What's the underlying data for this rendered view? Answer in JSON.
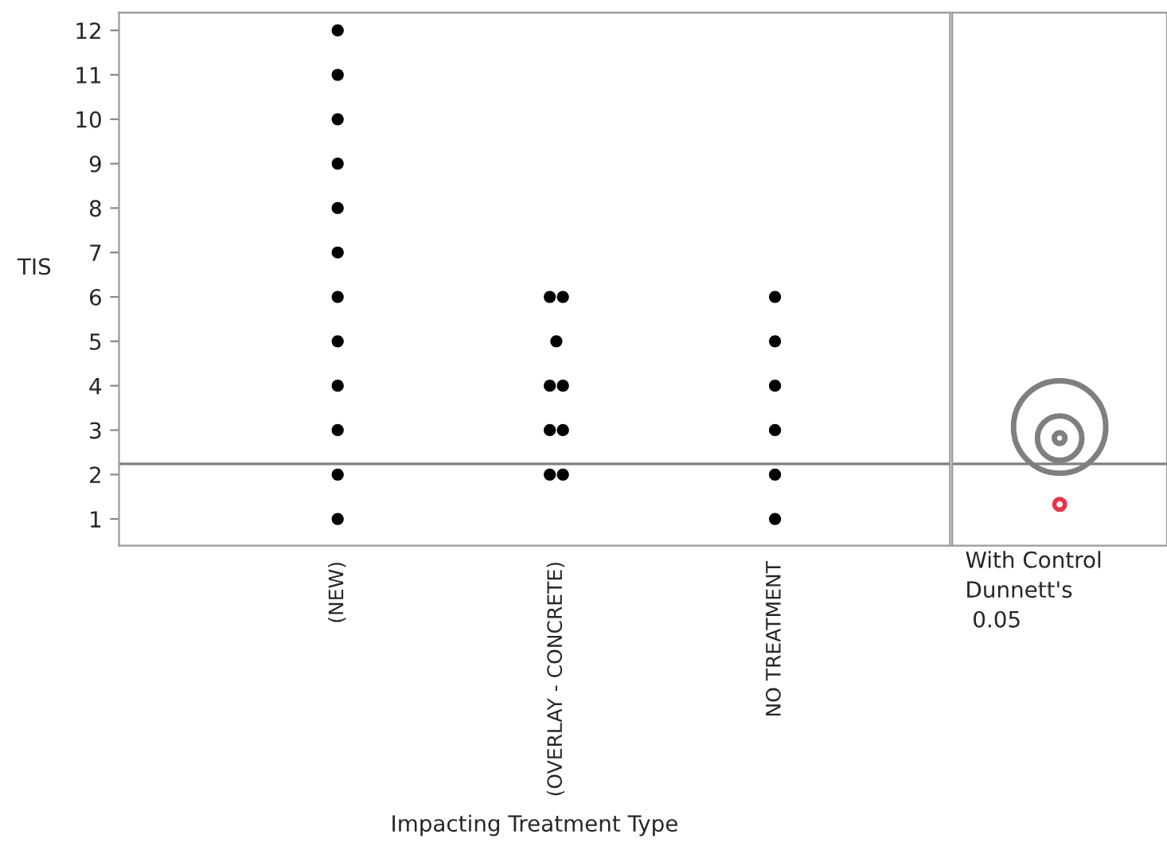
{
  "chart_data": {
    "type": "scatter",
    "categories": [
      "(NEW)",
      "(OVERLAY - CONCRETE)",
      "NO TREATMENT"
    ],
    "series": [
      {
        "color": "#000000",
        "x": [
          "(NEW)",
          "(NEW)",
          "(NEW)",
          "(NEW)",
          "(NEW)",
          "(NEW)",
          "(NEW)",
          "(NEW)",
          "(NEW)",
          "(NEW)",
          "(NEW)",
          "(NEW)",
          "(OVERLAY - CONCRETE)",
          "(OVERLAY - CONCRETE)",
          "(OVERLAY - CONCRETE)",
          "(OVERLAY - CONCRETE)",
          "(OVERLAY - CONCRETE)",
          "(OVERLAY - CONCRETE)",
          "(OVERLAY - CONCRETE)",
          "(OVERLAY - CONCRETE)",
          "(OVERLAY - CONCRETE)",
          "NO TREATMENT",
          "NO TREATMENT",
          "NO TREATMENT",
          "NO TREATMENT",
          "NO TREATMENT",
          "NO TREATMENT"
        ],
        "values": [
          1,
          2,
          3,
          4,
          5,
          6,
          7,
          8,
          9,
          10,
          11,
          12,
          2,
          2,
          3,
          3,
          4,
          4,
          5,
          6,
          6,
          1,
          2,
          3,
          4,
          5,
          6
        ]
      }
    ],
    "xlabel": "Impacting Treatment Type",
    "ylabel": "TIS",
    "ylim": [
      0.4,
      12.4
    ],
    "yticks": [
      1,
      2,
      3,
      4,
      5,
      6,
      7,
      8,
      9,
      10,
      11,
      12
    ],
    "ref_lines": [
      {
        "axis": "y",
        "value": 2.24,
        "color": "#808080"
      }
    ],
    "marker": "circle",
    "grid": false,
    "legend": false,
    "annotations": [
      "With Control\nDunnett's\n 0.05"
    ]
  }
}
